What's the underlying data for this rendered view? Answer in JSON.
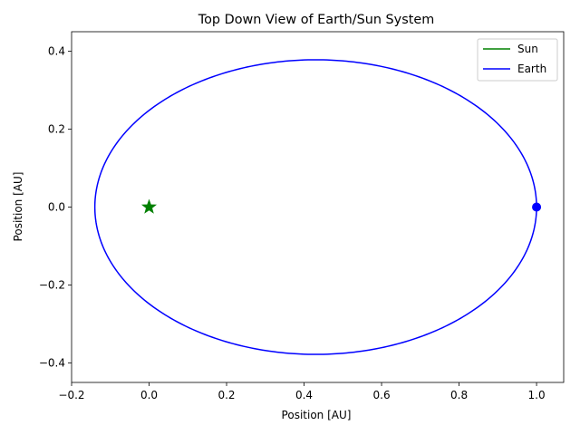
{
  "chart_data": {
    "type": "line",
    "title": "Top Down View of Earth/Sun System",
    "xlabel": "Position [AU]",
    "ylabel": "Position [AU]",
    "xlim": [
      -0.2,
      1.07
    ],
    "ylim": [
      -0.45,
      0.45
    ],
    "xticks": [
      -0.2,
      0.0,
      0.2,
      0.4,
      0.6,
      0.8,
      1.0
    ],
    "xtick_labels": [
      "−0.2",
      "0.0",
      "0.2",
      "0.4",
      "0.6",
      "0.8",
      "1.0"
    ],
    "yticks": [
      -0.4,
      -0.2,
      0.0,
      0.2,
      0.4
    ],
    "ytick_labels": [
      "−0.4",
      "−0.2",
      "0.0",
      "0.2",
      "0.4"
    ],
    "grid": false,
    "legend_position": "top-right",
    "series": [
      {
        "name": "Sun",
        "color": "#008000",
        "marker": "star",
        "points": [
          [
            0.0,
            0.0
          ]
        ]
      },
      {
        "name": "Earth",
        "color": "#0000ff",
        "marker": "circle",
        "orbit": {
          "shape": "ellipse",
          "center": [
            0.43,
            0.0
          ],
          "semi_axis_x": 0.57,
          "semi_axis_y": 0.378
        },
        "current_position": [
          1.0,
          0.0
        ]
      }
    ]
  }
}
